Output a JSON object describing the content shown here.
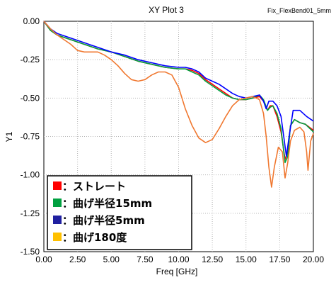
{
  "chart_data": {
    "type": "line",
    "title": "XY Plot 3",
    "subtitle": "Fix_FlexBend01_5mm",
    "xlabel": "Freq [GHz]",
    "ylabel": "Y1",
    "xlim": [
      0,
      20
    ],
    "ylim": [
      -1.5,
      0
    ],
    "x_ticks": [
      0,
      2.5,
      5,
      7.5,
      10,
      12.5,
      15,
      17.5,
      20
    ],
    "x_tick_labels": [
      "0.00",
      "2.50",
      "5.00",
      "7.50",
      "10.00",
      "12.50",
      "15.00",
      "17.50",
      "20.00"
    ],
    "y_ticks": [
      0,
      -0.25,
      -0.5,
      -0.75,
      -1,
      -1.25,
      -1.5
    ],
    "y_tick_labels": [
      "0.00",
      "-0.25",
      "-0.50",
      "-0.75",
      "-1.00",
      "-1.25",
      "-1.50"
    ],
    "grid": true,
    "legend_position": "bottom-left",
    "series": [
      {
        "name": "：ストレート",
        "color": "#ff0000",
        "points": [
          [
            0,
            0
          ],
          [
            0.5,
            -0.06
          ],
          [
            1,
            -0.09
          ],
          [
            2,
            -0.12
          ],
          [
            3,
            -0.15
          ],
          [
            4,
            -0.18
          ],
          [
            5,
            -0.2
          ],
          [
            6,
            -0.23
          ],
          [
            7,
            -0.26
          ],
          [
            8,
            -0.28
          ],
          [
            9,
            -0.3
          ],
          [
            10,
            -0.31
          ],
          [
            10.5,
            -0.31
          ],
          [
            11,
            -0.32
          ],
          [
            11.5,
            -0.34
          ],
          [
            12,
            -0.38
          ],
          [
            12.5,
            -0.41
          ],
          [
            13,
            -0.44
          ],
          [
            13.5,
            -0.47
          ],
          [
            14,
            -0.5
          ],
          [
            14.5,
            -0.51
          ],
          [
            15,
            -0.51
          ],
          [
            15.5,
            -0.5
          ],
          [
            16,
            -0.49
          ],
          [
            16.3,
            -0.52
          ],
          [
            16.6,
            -0.58
          ],
          [
            16.8,
            -0.55
          ],
          [
            17,
            -0.55
          ],
          [
            17.3,
            -0.62
          ],
          [
            17.6,
            -0.72
          ],
          [
            17.9,
            -0.9
          ],
          [
            18.1,
            -0.85
          ],
          [
            18.3,
            -0.68
          ],
          [
            18.6,
            -0.64
          ],
          [
            19,
            -0.66
          ],
          [
            19.4,
            -0.67
          ],
          [
            20,
            -0.71
          ]
        ]
      },
      {
        "name": "：曲げ半径15mm",
        "color": "#00a040",
        "points": [
          [
            0,
            0
          ],
          [
            0.5,
            -0.06
          ],
          [
            1,
            -0.09
          ],
          [
            2,
            -0.12
          ],
          [
            3,
            -0.15
          ],
          [
            4,
            -0.18
          ],
          [
            5,
            -0.2
          ],
          [
            6,
            -0.23
          ],
          [
            7,
            -0.26
          ],
          [
            8,
            -0.28
          ],
          [
            9,
            -0.3
          ],
          [
            10,
            -0.31
          ],
          [
            10.5,
            -0.31
          ],
          [
            11,
            -0.33
          ],
          [
            11.5,
            -0.35
          ],
          [
            12,
            -0.39
          ],
          [
            12.5,
            -0.42
          ],
          [
            13,
            -0.45
          ],
          [
            13.5,
            -0.48
          ],
          [
            14,
            -0.5
          ],
          [
            14.5,
            -0.51
          ],
          [
            15,
            -0.51
          ],
          [
            15.5,
            -0.5
          ],
          [
            16,
            -0.48
          ],
          [
            16.3,
            -0.51
          ],
          [
            16.6,
            -0.58
          ],
          [
            16.8,
            -0.56
          ],
          [
            17,
            -0.55
          ],
          [
            17.3,
            -0.6
          ],
          [
            17.6,
            -0.7
          ],
          [
            17.9,
            -0.92
          ],
          [
            18.1,
            -0.88
          ],
          [
            18.3,
            -0.68
          ],
          [
            18.6,
            -0.64
          ],
          [
            19,
            -0.66
          ],
          [
            19.4,
            -0.67
          ],
          [
            20,
            -0.72
          ]
        ]
      },
      {
        "name": "：曲げ半径5mm",
        "color": "#0000ff",
        "points": [
          [
            0,
            0
          ],
          [
            0.5,
            -0.05
          ],
          [
            1,
            -0.08
          ],
          [
            2,
            -0.11
          ],
          [
            3,
            -0.14
          ],
          [
            4,
            -0.17
          ],
          [
            5,
            -0.2
          ],
          [
            6,
            -0.22
          ],
          [
            7,
            -0.25
          ],
          [
            8,
            -0.27
          ],
          [
            9,
            -0.29
          ],
          [
            10,
            -0.3
          ],
          [
            10.5,
            -0.3
          ],
          [
            11,
            -0.31
          ],
          [
            11.5,
            -0.33
          ],
          [
            12,
            -0.37
          ],
          [
            12.5,
            -0.39
          ],
          [
            13,
            -0.41
          ],
          [
            13.5,
            -0.44
          ],
          [
            14,
            -0.47
          ],
          [
            14.5,
            -0.49
          ],
          [
            15,
            -0.5
          ],
          [
            15.5,
            -0.49
          ],
          [
            16,
            -0.48
          ],
          [
            16.3,
            -0.52
          ],
          [
            16.5,
            -0.57
          ],
          [
            16.7,
            -0.52
          ],
          [
            17,
            -0.52
          ],
          [
            17.3,
            -0.55
          ],
          [
            17.6,
            -0.62
          ],
          [
            17.8,
            -0.75
          ],
          [
            18,
            -0.88
          ],
          [
            18.2,
            -0.75
          ],
          [
            18.5,
            -0.58
          ],
          [
            19,
            -0.58
          ],
          [
            19.5,
            -0.62
          ],
          [
            20,
            -0.65
          ]
        ]
      },
      {
        "name": "：曲げ180度",
        "color": "#f07830",
        "points": [
          [
            0,
            0
          ],
          [
            0.5,
            -0.05
          ],
          [
            1,
            -0.09
          ],
          [
            2,
            -0.15
          ],
          [
            2.5,
            -0.19
          ],
          [
            3,
            -0.2
          ],
          [
            3.5,
            -0.2
          ],
          [
            4,
            -0.2
          ],
          [
            4.5,
            -0.22
          ],
          [
            5,
            -0.25
          ],
          [
            5.5,
            -0.29
          ],
          [
            6,
            -0.34
          ],
          [
            6.5,
            -0.38
          ],
          [
            7,
            -0.39
          ],
          [
            7.5,
            -0.38
          ],
          [
            8,
            -0.35
          ],
          [
            8.5,
            -0.33
          ],
          [
            9,
            -0.33
          ],
          [
            9.5,
            -0.35
          ],
          [
            10,
            -0.43
          ],
          [
            10.5,
            -0.57
          ],
          [
            11,
            -0.68
          ],
          [
            11.5,
            -0.76
          ],
          [
            12,
            -0.79
          ],
          [
            12.5,
            -0.77
          ],
          [
            13,
            -0.7
          ],
          [
            13.5,
            -0.62
          ],
          [
            14,
            -0.55
          ],
          [
            14.5,
            -0.51
          ],
          [
            15,
            -0.5
          ],
          [
            15.5,
            -0.49
          ],
          [
            16,
            -0.51
          ],
          [
            16.3,
            -0.6
          ],
          [
            16.5,
            -0.75
          ],
          [
            16.7,
            -0.95
          ],
          [
            16.9,
            -1.08
          ],
          [
            17.1,
            -0.95
          ],
          [
            17.4,
            -0.82
          ],
          [
            17.7,
            -0.85
          ],
          [
            17.9,
            -1.02
          ],
          [
            18.1,
            -0.92
          ],
          [
            18.3,
            -0.78
          ],
          [
            18.6,
            -0.71
          ],
          [
            19,
            -0.69
          ],
          [
            19.3,
            -0.72
          ],
          [
            19.5,
            -0.85
          ],
          [
            19.6,
            -0.97
          ],
          [
            19.8,
            -0.78
          ],
          [
            20,
            -0.73
          ]
        ]
      }
    ]
  }
}
